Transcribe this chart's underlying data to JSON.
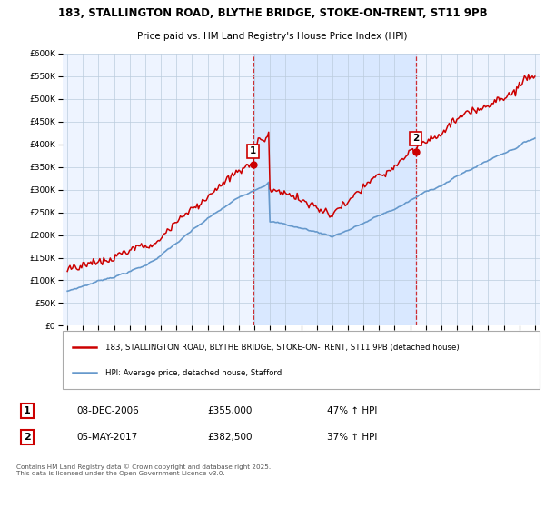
{
  "title_line1": "183, STALLINGTON ROAD, BLYTHE BRIDGE, STOKE-ON-TRENT, ST11 9PB",
  "title_line2": "Price paid vs. HM Land Registry's House Price Index (HPI)",
  "property_label": "183, STALLINGTON ROAD, BLYTHE BRIDGE, STOKE-ON-TRENT, ST11 9PB (detached house)",
  "hpi_label": "HPI: Average price, detached house, Stafford",
  "sale1_date": "08-DEC-2006",
  "sale1_price": 355000,
  "sale1_hpi_pct": "47% ↑ HPI",
  "sale2_date": "05-MAY-2017",
  "sale2_price": 382500,
  "sale2_hpi_pct": "37% ↑ HPI",
  "copyright_text": "Contains HM Land Registry data © Crown copyright and database right 2025.\nThis data is licensed under the Open Government Licence v3.0.",
  "red_color": "#cc0000",
  "blue_color": "#6699cc",
  "bg_color": "#ddeeff",
  "shade_color": "#cce0ff",
  "plot_bg": "#eef4ff",
  "grid_color": "#bbccdd",
  "ylim_min": 0,
  "ylim_max": 600000,
  "sale1_year": 2006.92,
  "sale2_year": 2017.35,
  "xmin": 1995,
  "xmax": 2025
}
